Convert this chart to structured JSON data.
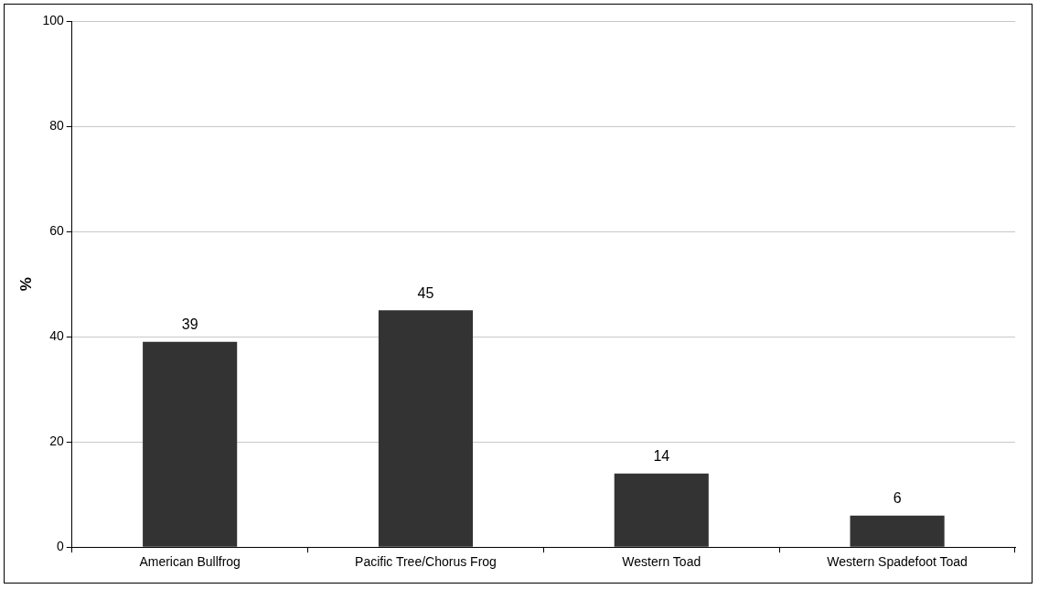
{
  "chart_data": {
    "type": "bar",
    "ylabel": "%",
    "categories": [
      "American Bullfrog",
      "Pacific Tree/Chorus Frog",
      "Western Toad",
      "Western Spadefoot Toad"
    ],
    "values": [
      39,
      45,
      14,
      6
    ],
    "color": "#333333",
    "ylim": [
      0,
      100
    ],
    "yticks": [
      0,
      20,
      40,
      60,
      80,
      100
    ],
    "grid": "y",
    "data_labels": true
  }
}
